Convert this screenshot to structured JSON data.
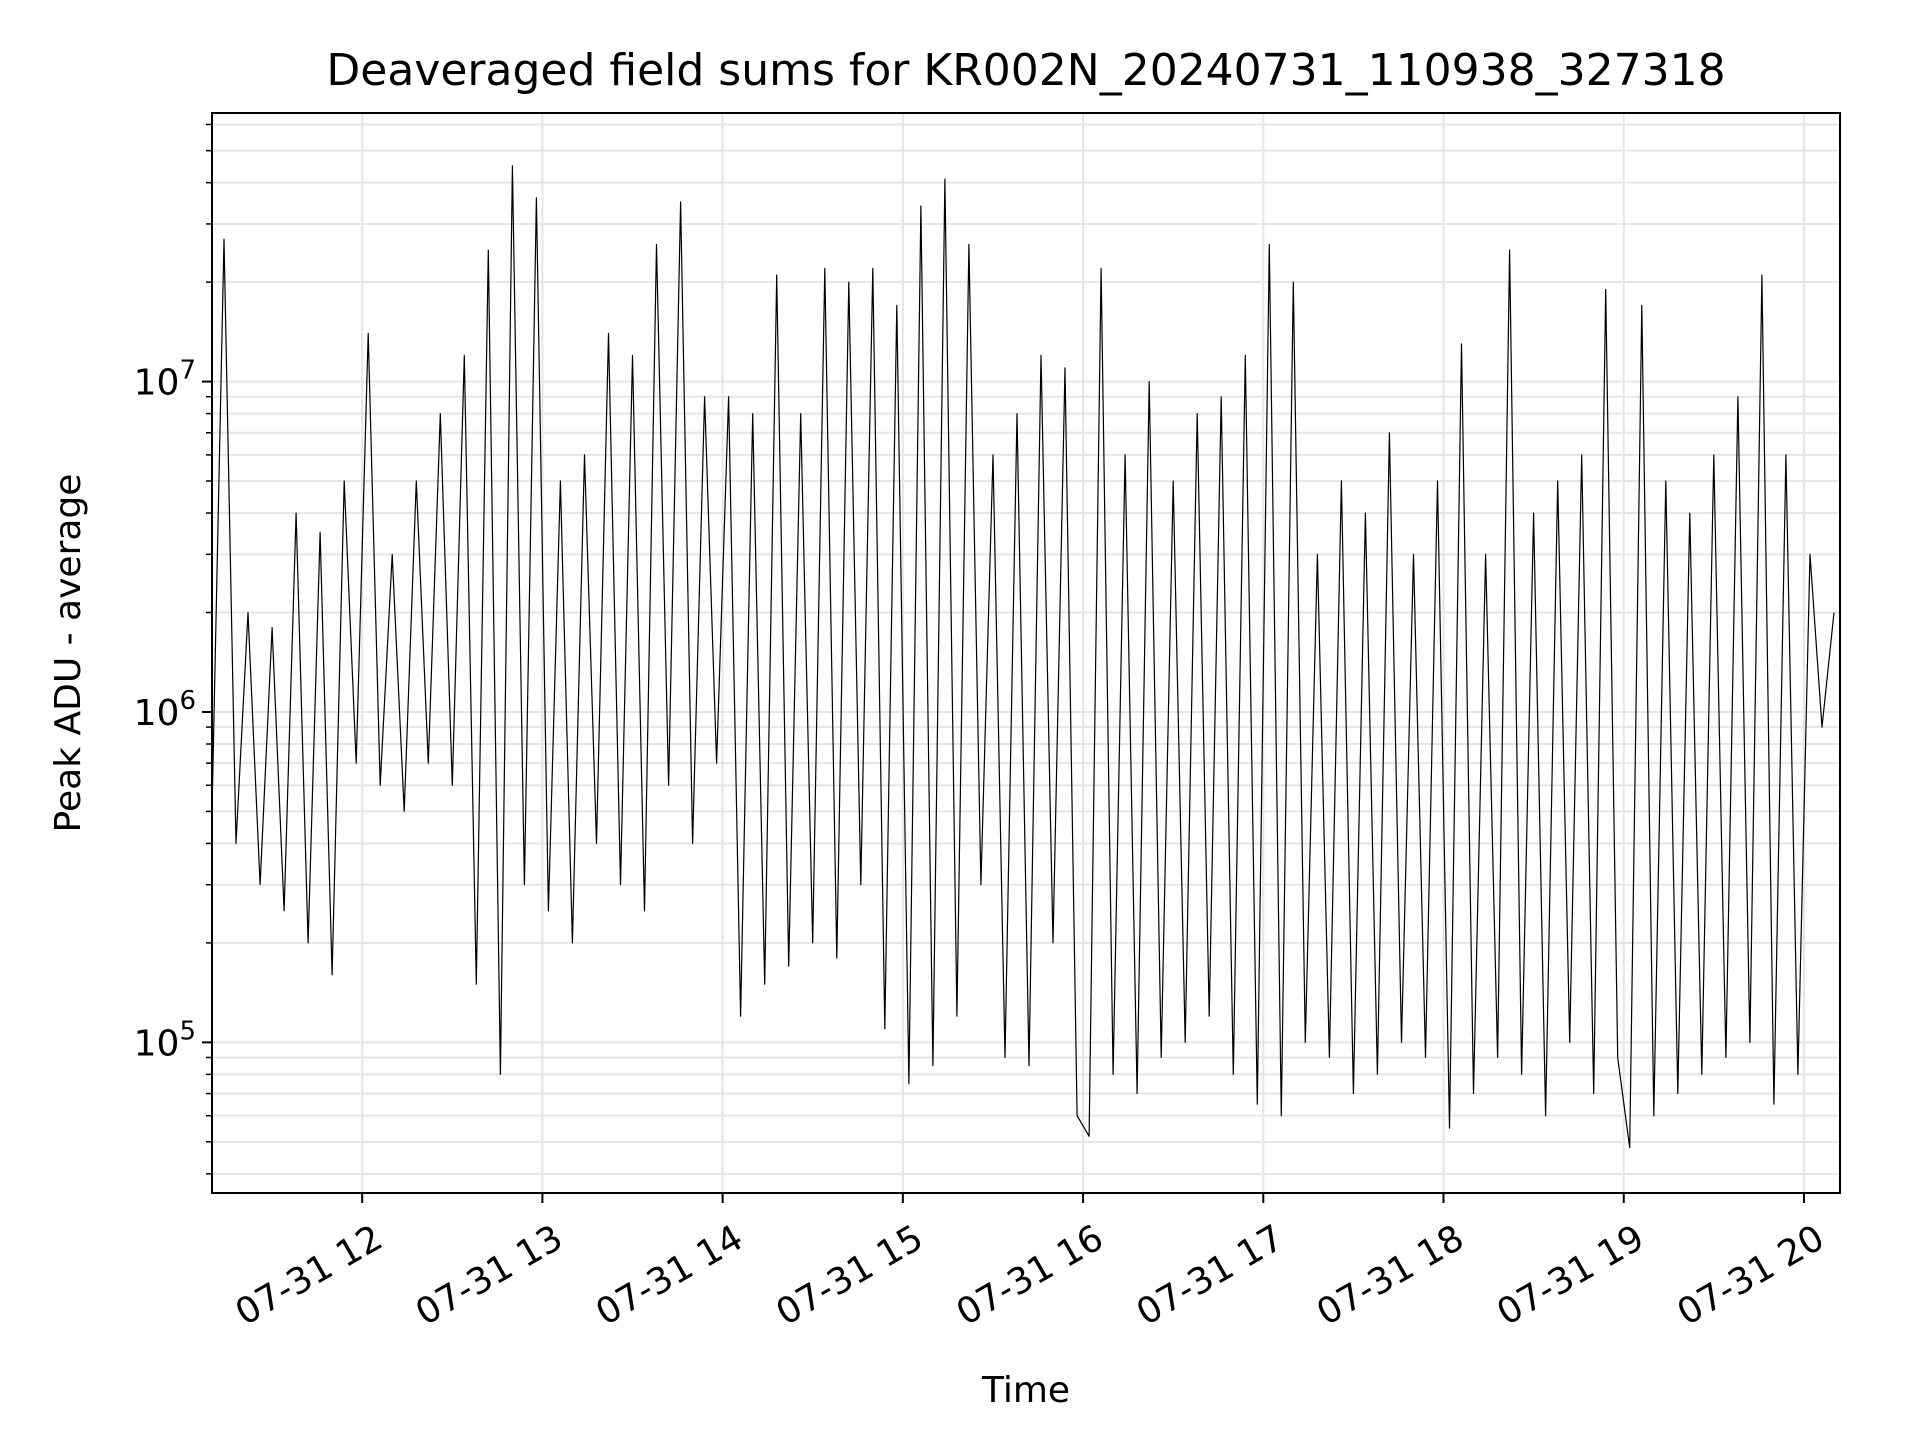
{
  "chart_data": {
    "type": "line",
    "title": "Deaveraged field sums for KR002N_20240731_110938_327318",
    "xlabel": "Time",
    "ylabel": "Peak ADU - average",
    "yscale": "log",
    "xlim": [
      "2024-07-31 11:10",
      "2024-07-31 20:12"
    ],
    "ylim": [
      35000,
      65000000
    ],
    "grid": true,
    "line_color": "#000000",
    "grid_color": "#e6e6e6",
    "x_ticks": [
      {
        "value": "2024-07-31 12:00",
        "label": "07-31 12"
      },
      {
        "value": "2024-07-31 13:00",
        "label": "07-31 13"
      },
      {
        "value": "2024-07-31 14:00",
        "label": "07-31 14"
      },
      {
        "value": "2024-07-31 15:00",
        "label": "07-31 15"
      },
      {
        "value": "2024-07-31 16:00",
        "label": "07-31 16"
      },
      {
        "value": "2024-07-31 17:00",
        "label": "07-31 17"
      },
      {
        "value": "2024-07-31 18:00",
        "label": "07-31 18"
      },
      {
        "value": "2024-07-31 19:00",
        "label": "07-31 19"
      },
      {
        "value": "2024-07-31 20:00",
        "label": "07-31 20"
      }
    ],
    "y_ticks": [
      {
        "value": 100000,
        "base": "10",
        "exp": "5"
      },
      {
        "value": 1000000,
        "base": "10",
        "exp": "6"
      },
      {
        "value": 10000000,
        "base": "10",
        "exp": "7"
      }
    ],
    "series": [
      {
        "x": [
          "2024-07-31 11:10",
          "2024-07-31 11:14",
          "2024-07-31 11:18",
          "2024-07-31 11:22",
          "2024-07-31 11:26",
          "2024-07-31 11:30",
          "2024-07-31 11:34",
          "2024-07-31 11:38",
          "2024-07-31 11:42",
          "2024-07-31 11:46",
          "2024-07-31 11:50",
          "2024-07-31 11:54",
          "2024-07-31 11:58",
          "2024-07-31 12:02",
          "2024-07-31 12:06",
          "2024-07-31 12:10",
          "2024-07-31 12:14",
          "2024-07-31 12:18",
          "2024-07-31 12:22",
          "2024-07-31 12:26",
          "2024-07-31 12:30",
          "2024-07-31 12:34",
          "2024-07-31 12:38",
          "2024-07-31 12:42",
          "2024-07-31 12:46",
          "2024-07-31 12:50",
          "2024-07-31 12:54",
          "2024-07-31 12:58",
          "2024-07-31 13:02",
          "2024-07-31 13:06",
          "2024-07-31 13:10",
          "2024-07-31 13:14",
          "2024-07-31 13:18",
          "2024-07-31 13:22",
          "2024-07-31 13:26",
          "2024-07-31 13:30",
          "2024-07-31 13:34",
          "2024-07-31 13:38",
          "2024-07-31 13:42",
          "2024-07-31 13:46",
          "2024-07-31 13:50",
          "2024-07-31 13:54",
          "2024-07-31 13:58",
          "2024-07-31 14:02",
          "2024-07-31 14:06",
          "2024-07-31 14:10",
          "2024-07-31 14:14",
          "2024-07-31 14:18",
          "2024-07-31 14:22",
          "2024-07-31 14:26",
          "2024-07-31 14:30",
          "2024-07-31 14:34",
          "2024-07-31 14:38",
          "2024-07-31 14:42",
          "2024-07-31 14:46",
          "2024-07-31 14:50",
          "2024-07-31 14:54",
          "2024-07-31 14:58",
          "2024-07-31 15:02",
          "2024-07-31 15:06",
          "2024-07-31 15:10",
          "2024-07-31 15:14",
          "2024-07-31 15:18",
          "2024-07-31 15:22",
          "2024-07-31 15:26",
          "2024-07-31 15:30",
          "2024-07-31 15:34",
          "2024-07-31 15:38",
          "2024-07-31 15:42",
          "2024-07-31 15:46",
          "2024-07-31 15:50",
          "2024-07-31 15:54",
          "2024-07-31 15:58",
          "2024-07-31 16:02",
          "2024-07-31 16:06",
          "2024-07-31 16:10",
          "2024-07-31 16:14",
          "2024-07-31 16:18",
          "2024-07-31 16:22",
          "2024-07-31 16:26",
          "2024-07-31 16:30",
          "2024-07-31 16:34",
          "2024-07-31 16:38",
          "2024-07-31 16:42",
          "2024-07-31 16:46",
          "2024-07-31 16:50",
          "2024-07-31 16:54",
          "2024-07-31 16:58",
          "2024-07-31 17:02",
          "2024-07-31 17:06",
          "2024-07-31 17:10",
          "2024-07-31 17:14",
          "2024-07-31 17:18",
          "2024-07-31 17:22",
          "2024-07-31 17:26",
          "2024-07-31 17:30",
          "2024-07-31 17:34",
          "2024-07-31 17:38",
          "2024-07-31 17:42",
          "2024-07-31 17:46",
          "2024-07-31 17:50",
          "2024-07-31 17:54",
          "2024-07-31 17:58",
          "2024-07-31 18:02",
          "2024-07-31 18:06",
          "2024-07-31 18:10",
          "2024-07-31 18:14",
          "2024-07-31 18:18",
          "2024-07-31 18:22",
          "2024-07-31 18:26",
          "2024-07-31 18:30",
          "2024-07-31 18:34",
          "2024-07-31 18:38",
          "2024-07-31 18:42",
          "2024-07-31 18:46",
          "2024-07-31 18:50",
          "2024-07-31 18:54",
          "2024-07-31 18:58",
          "2024-07-31 19:02",
          "2024-07-31 19:06",
          "2024-07-31 19:10",
          "2024-07-31 19:14",
          "2024-07-31 19:18",
          "2024-07-31 19:22",
          "2024-07-31 19:26",
          "2024-07-31 19:30",
          "2024-07-31 19:34",
          "2024-07-31 19:38",
          "2024-07-31 19:42",
          "2024-07-31 19:46",
          "2024-07-31 19:50",
          "2024-07-31 19:54",
          "2024-07-31 19:58",
          "2024-07-31 20:02",
          "2024-07-31 20:06",
          "2024-07-31 20:10"
        ],
        "y": [
          500000,
          27000000,
          400000,
          2000000,
          300000,
          1800000,
          250000,
          4000000,
          200000,
          3500000,
          160000,
          5000000,
          700000,
          14000000,
          600000,
          3000000,
          500000,
          5000000,
          700000,
          8000000,
          600000,
          12000000,
          150000,
          25000000,
          80000,
          45000000,
          300000,
          36000000,
          250000,
          5000000,
          200000,
          6000000,
          400000,
          14000000,
          300000,
          12000000,
          250000,
          26000000,
          600000,
          35000000,
          400000,
          9000000,
          700000,
          9000000,
          120000,
          8000000,
          150000,
          21000000,
          170000,
          8000000,
          200000,
          22000000,
          180000,
          20000000,
          300000,
          22000000,
          110000,
          17000000,
          75000,
          34000000,
          85000,
          41000000,
          120000,
          26000000,
          300000,
          6000000,
          90000,
          8000000,
          85000,
          12000000,
          200000,
          11000000,
          60000,
          52000,
          22000000,
          80000,
          6000000,
          70000,
          10000000,
          90000,
          5000000,
          100000,
          8000000,
          120000,
          9000000,
          80000,
          12000000,
          65000,
          26000000,
          60000,
          20000000,
          100000,
          3000000,
          90000,
          5000000,
          70000,
          4000000,
          80000,
          7000000,
          100000,
          3000000,
          90000,
          5000000,
          55000,
          13000000,
          70000,
          3000000,
          90000,
          25000000,
          80000,
          4000000,
          60000,
          5000000,
          100000,
          6000000,
          70000,
          19000000,
          90000,
          48000,
          17000000,
          60000,
          5000000,
          70000,
          4000000,
          80000,
          6000000,
          90000,
          9000000,
          100000,
          21000000,
          65000,
          6000000,
          80000,
          3000000,
          900000,
          2000000
        ]
      }
    ]
  }
}
